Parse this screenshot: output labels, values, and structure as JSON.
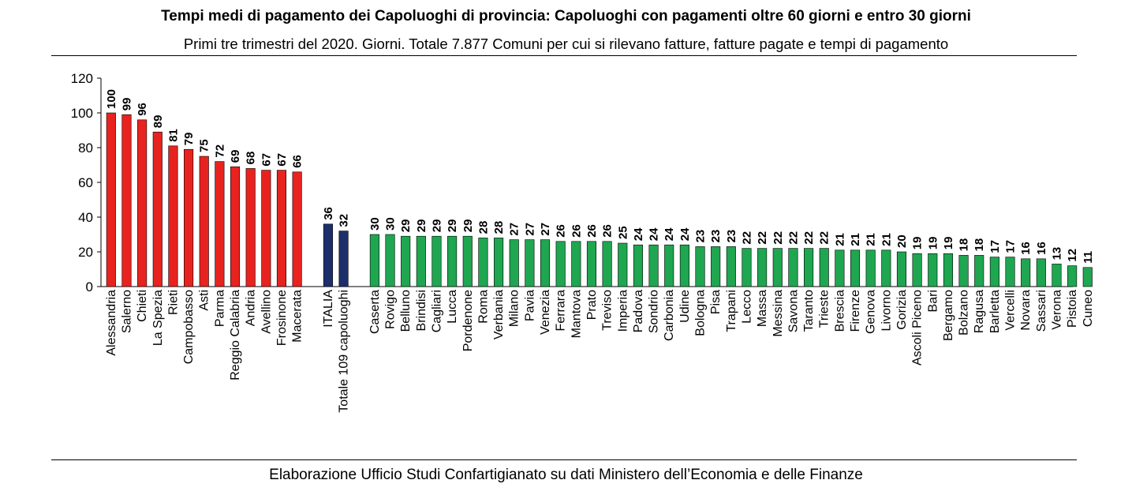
{
  "header": {
    "title": "Tempi medi di pagamento dei Capoluoghi di provincia: Capoluoghi con pagamenti oltre 60 giorni e entro 30 giorni",
    "subtitle": "Primi tre trimestri del 2020. Giorni. Totale 7.877 Comuni per cui si rilevano fatture, fatture pagate e tempi di pagamento"
  },
  "footer": {
    "source": "Elaborazione Ufficio Studi Confartigianato su dati Ministero dell’Economia e delle Finanze"
  },
  "chart_data": {
    "type": "bar",
    "title": "Tempi medi di pagamento dei Capoluoghi di provincia: Capoluoghi con pagamenti oltre 60 giorni e entro 30 giorni",
    "subtitle": "Primi tre trimestri del 2020. Giorni. Totale 7.877 Comuni per cui si rilevano fatture, fatture pagate e tempi di pagamento",
    "xlabel": "",
    "ylabel": "",
    "ylim": [
      0,
      120
    ],
    "yticks": [
      0,
      20,
      40,
      60,
      80,
      100,
      120
    ],
    "grid": false,
    "legend": "none",
    "groups": [
      {
        "color": "#e8231f",
        "categories": [
          "Alessandria",
          "Salerno",
          "Chieti",
          "La Spezia",
          "Rieti",
          "Campobasso",
          "Asti",
          "Parma",
          "Reggio Calabria",
          "Andria",
          "Avellino",
          "Frosinone",
          "Macerata"
        ],
        "values": [
          100,
          99,
          96,
          89,
          81,
          79,
          75,
          72,
          69,
          68,
          67,
          67,
          66
        ]
      },
      {
        "color": "#1c2f6b",
        "categories": [
          "ITALIA",
          "Totale 109 capoluoghi"
        ],
        "values": [
          36,
          32
        ]
      },
      {
        "color": "#1fa650",
        "categories": [
          "Caserta",
          "Rovigo",
          "Belluno",
          "Brindisi",
          "Cagliari",
          "Lucca",
          "Pordenone",
          "Roma",
          "Verbania",
          "Milano",
          "Pavia",
          "Venezia",
          "Ferrara",
          "Mantova",
          "Prato",
          "Treviso",
          "Imperia",
          "Padova",
          "Sondrio",
          "Carbonia",
          "Udine",
          "Bologna",
          "Pisa",
          "Trapani",
          "Lecco",
          "Massa",
          "Messina",
          "Savona",
          "Taranto",
          "Trieste",
          "Brescia",
          "Firenze",
          "Genova",
          "Livorno",
          "Gorizia",
          "Ascoli Piceno",
          "Bari",
          "Bergamo",
          "Bolzano",
          "Ragusa",
          "Barletta",
          "Vercelli",
          "Novara",
          "Sassari",
          "Verona",
          "Pistoia",
          "Cuneo"
        ],
        "values": [
          30,
          30,
          29,
          29,
          29,
          29,
          29,
          28,
          28,
          27,
          27,
          27,
          26,
          26,
          26,
          26,
          25,
          24,
          24,
          24,
          24,
          23,
          23,
          23,
          22,
          22,
          22,
          22,
          22,
          22,
          21,
          21,
          21,
          21,
          20,
          19,
          19,
          19,
          18,
          18,
          17,
          17,
          16,
          16,
          13,
          12,
          11
        ]
      }
    ]
  }
}
